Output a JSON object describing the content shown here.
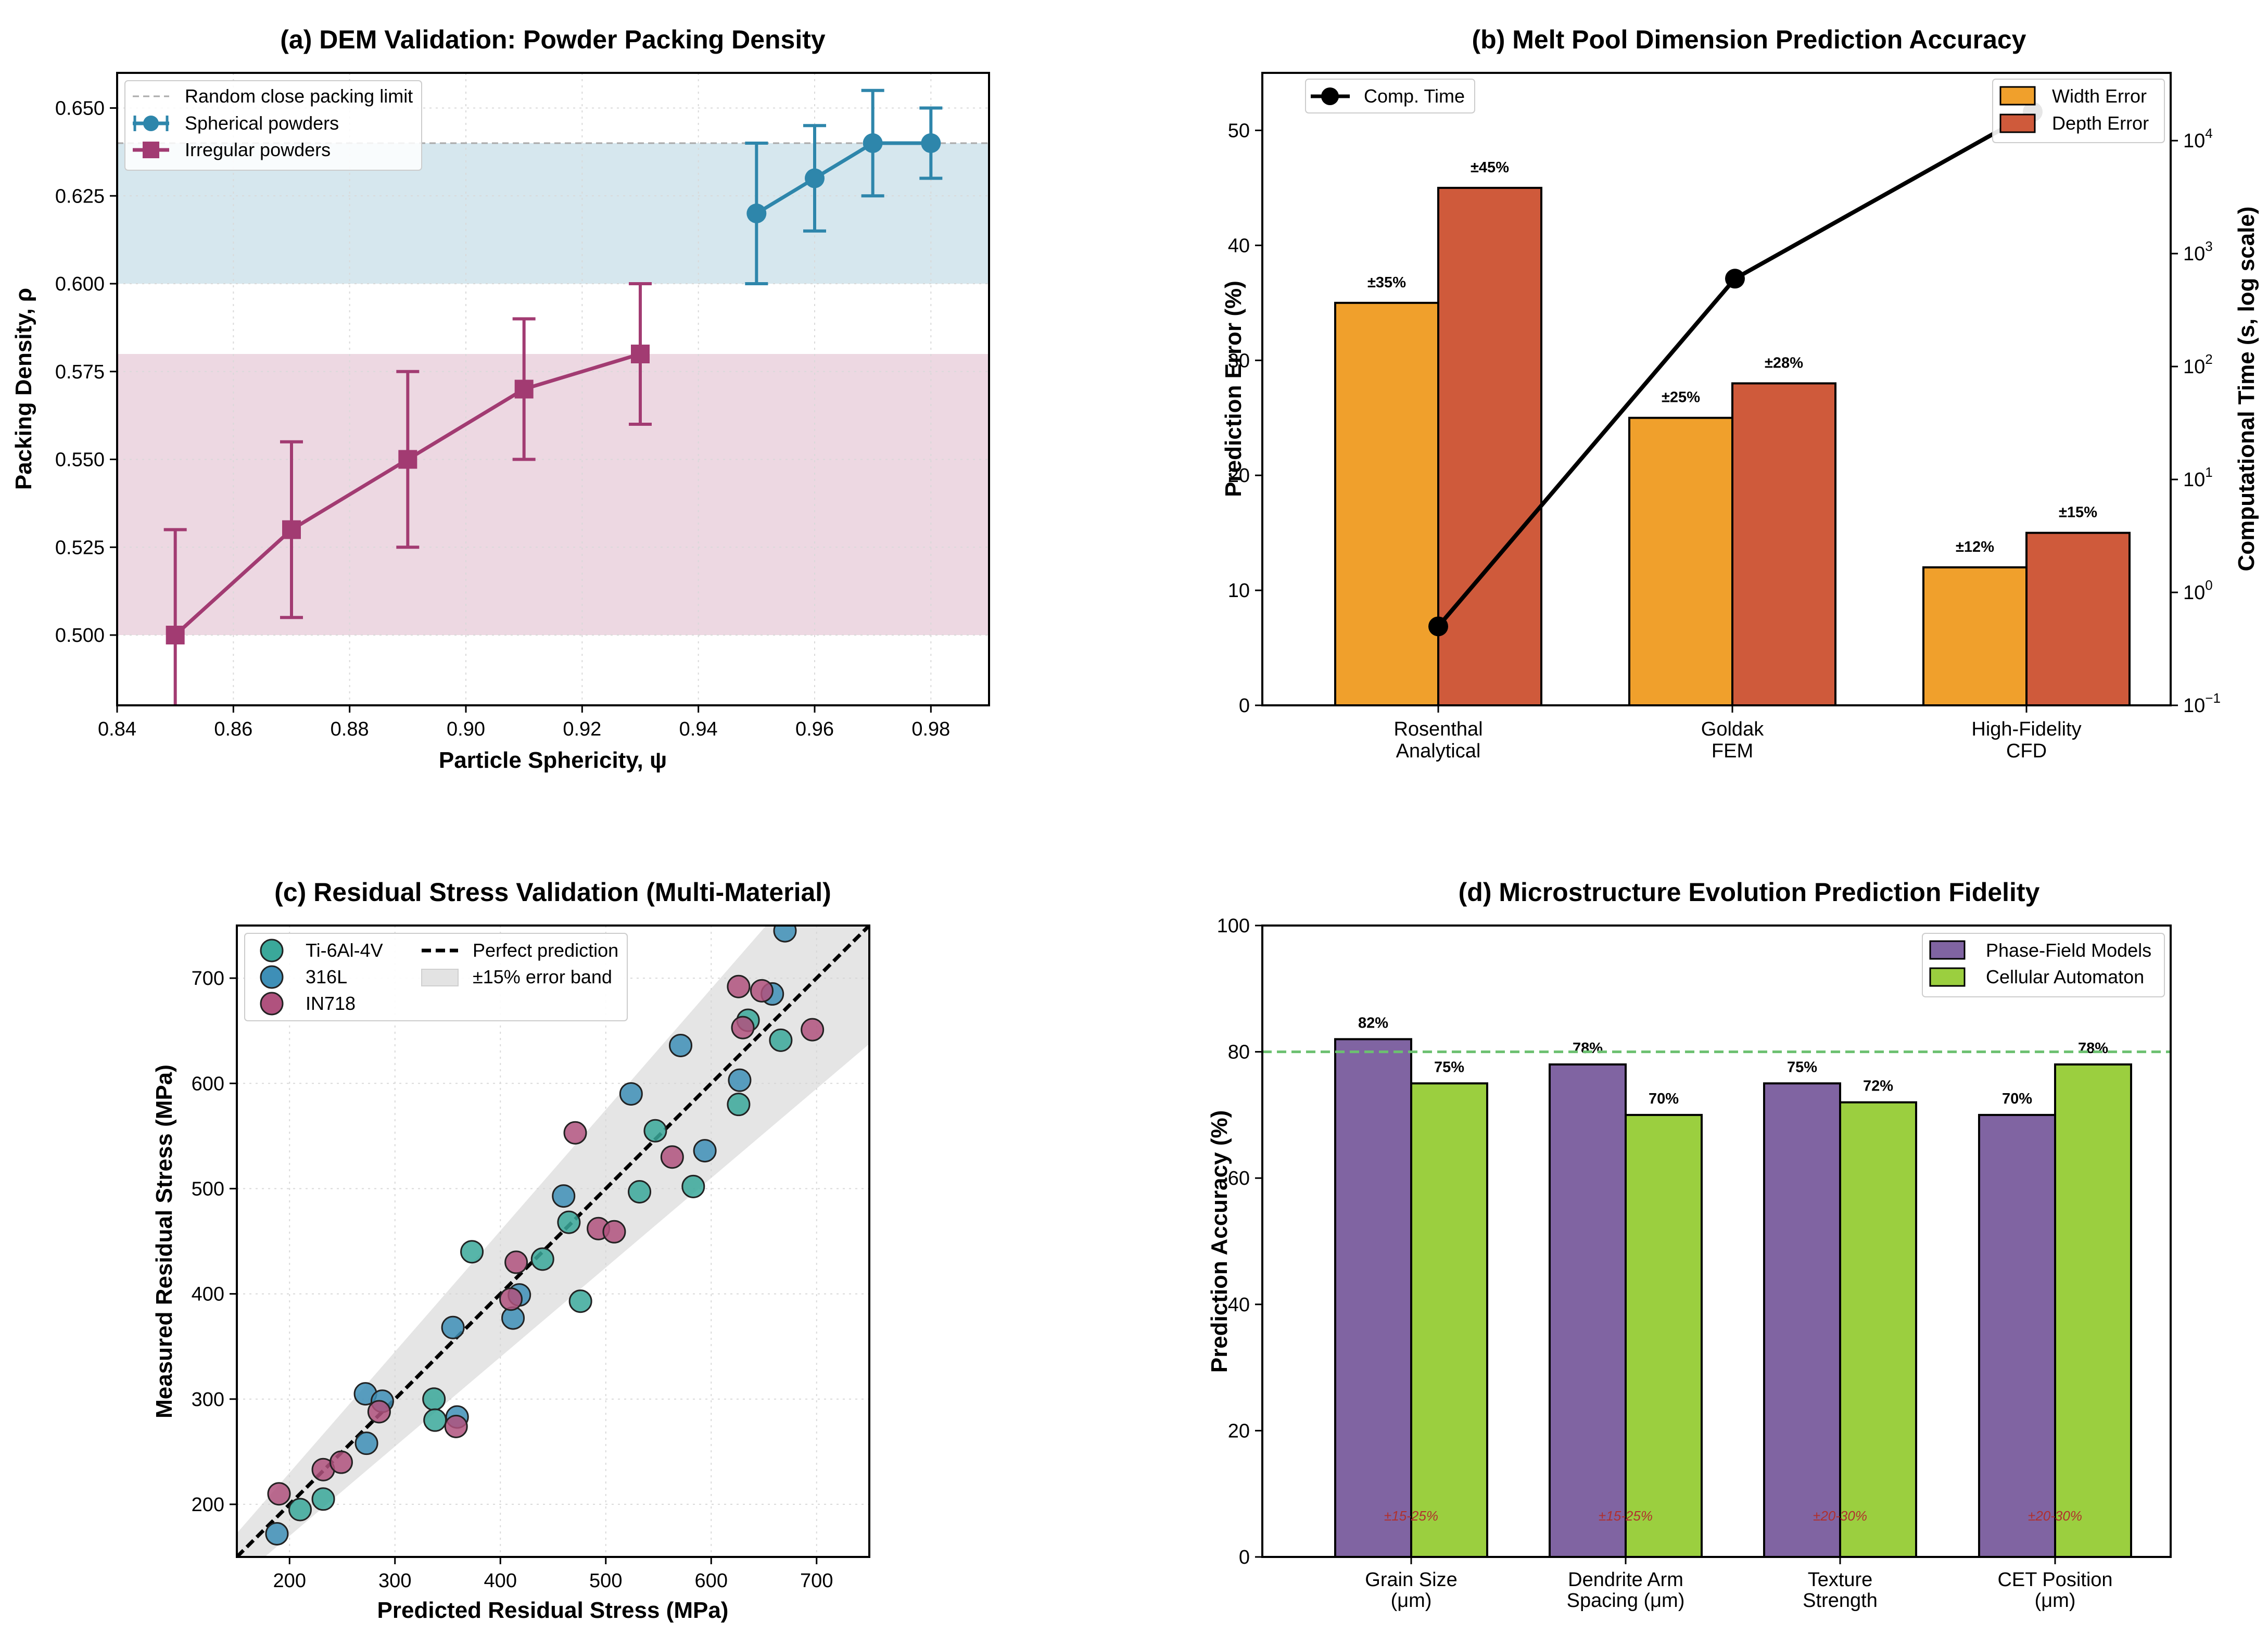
{
  "chart_data": [
    {
      "id": "a",
      "type": "line",
      "title": "(a) DEM Validation: Powder Packing Density",
      "xlabel": "Particle Sphericity, ψ",
      "ylabel": "Packing Density, ρ",
      "xlim": [
        0.84,
        0.99
      ],
      "ylim": [
        0.48,
        0.66
      ],
      "xticks": [
        "0.84",
        "0.86",
        "0.88",
        "0.90",
        "0.92",
        "0.94",
        "0.96",
        "0.98"
      ],
      "yticks": [
        "0.500",
        "0.525",
        "0.550",
        "0.575",
        "0.600",
        "0.625",
        "0.650"
      ],
      "reference_line": {
        "label": "Random close packing limit",
        "y": 0.64
      },
      "bands": [
        {
          "name": "spherical-band",
          "y": [
            0.6,
            0.64
          ],
          "color": "#add0dd"
        },
        {
          "name": "irregular-band",
          "y": [
            0.5,
            0.58
          ],
          "color": "#dcb2c6"
        }
      ],
      "series": [
        {
          "name": "Spherical powders",
          "color": "#2e86ab",
          "marker": "circle",
          "x": [
            0.95,
            0.96,
            0.97,
            0.98
          ],
          "y": [
            0.62,
            0.63,
            0.64,
            0.64
          ],
          "err": [
            0.02,
            0.015,
            0.015,
            0.01
          ]
        },
        {
          "name": "Irregular powders",
          "color": "#a23b72",
          "marker": "square",
          "x": [
            0.85,
            0.87,
            0.89,
            0.91,
            0.93
          ],
          "y": [
            0.5,
            0.53,
            0.55,
            0.57,
            0.58
          ],
          "err": [
            0.03,
            0.025,
            0.025,
            0.02,
            0.02
          ]
        }
      ]
    },
    {
      "id": "b",
      "type": "bar",
      "title": "(b) Melt Pool Dimension Prediction Accuracy",
      "ylabel": "Prediction Error (%)",
      "y2label": "Computational Time (s, log scale)",
      "ylim": [
        0,
        55
      ],
      "yticks": [
        "0",
        "10",
        "20",
        "30",
        "40",
        "50"
      ],
      "categories": [
        [
          "Rosenthal",
          "Analytical"
        ],
        [
          "Goldak",
          "FEM"
        ],
        [
          "High-Fidelity",
          "CFD"
        ]
      ],
      "series": [
        {
          "name": "Width Error",
          "color": "#f0a02c",
          "values": [
            35,
            25,
            12
          ],
          "labels": [
            "±35%",
            "±25%",
            "±12%"
          ]
        },
        {
          "name": "Depth Error",
          "color": "#cf5a3b",
          "values": [
            45,
            28,
            15
          ],
          "labels": [
            "±45%",
            "±28%",
            "±15%"
          ]
        }
      ],
      "line_series": {
        "name": "Comp. Time",
        "color": "#000000",
        "values": [
          0.5,
          600,
          18000
        ]
      },
      "y2_log_range": [
        -1,
        4.6
      ],
      "y2_ticks": [
        {
          "base": "10",
          "exp": "−1"
        },
        {
          "base": "10",
          "exp": "0"
        },
        {
          "base": "10",
          "exp": "1"
        },
        {
          "base": "10",
          "exp": "2"
        },
        {
          "base": "10",
          "exp": "3"
        },
        {
          "base": "10",
          "exp": "4"
        }
      ]
    },
    {
      "id": "c",
      "type": "scatter",
      "title": "(c) Residual Stress Validation (Multi-Material)",
      "xlabel": "Predicted Residual Stress (MPa)",
      "ylabel": "Measured Residual Stress (MPa)",
      "xlim": [
        150,
        750
      ],
      "ylim": [
        150,
        750
      ],
      "xticks": [
        "200",
        "300",
        "400",
        "500",
        "600",
        "700"
      ],
      "yticks": [
        "200",
        "300",
        "400",
        "500",
        "600",
        "700"
      ],
      "reference_line": {
        "label": "Perfect prediction"
      },
      "band": {
        "label": "±15% error band",
        "fraction": 0.15
      },
      "series": [
        {
          "name": "Ti-6Al-4V",
          "color": "#3aa89a",
          "points": [
            [
              210,
              195
            ],
            [
              232,
              205
            ],
            [
              337,
              300
            ],
            [
              338,
              280
            ],
            [
              373,
              440
            ],
            [
              440,
              433
            ],
            [
              465,
              468
            ],
            [
              476,
              393
            ],
            [
              532,
              497
            ],
            [
              547,
              555
            ],
            [
              583,
              502
            ],
            [
              626,
              580
            ],
            [
              635,
              660
            ],
            [
              666,
              641
            ]
          ]
        },
        {
          "name": "316L",
          "color": "#3e8fb7",
          "points": [
            [
              188,
              172
            ],
            [
              272,
              305
            ],
            [
              273,
              258
            ],
            [
              288,
              298
            ],
            [
              355,
              368
            ],
            [
              359,
              283
            ],
            [
              412,
              377
            ],
            [
              418,
              399
            ],
            [
              460,
              493
            ],
            [
              524,
              590
            ],
            [
              571,
              636
            ],
            [
              594,
              536
            ],
            [
              627,
              603
            ],
            [
              658,
              685
            ],
            [
              670,
              745
            ]
          ]
        },
        {
          "name": "IN718",
          "color": "#b0527e",
          "points": [
            [
              190,
              210
            ],
            [
              232,
              233
            ],
            [
              249,
              240
            ],
            [
              285,
              288
            ],
            [
              358,
              274
            ],
            [
              410,
              395
            ],
            [
              415,
              430
            ],
            [
              471,
              553
            ],
            [
              493,
              462
            ],
            [
              508,
              459
            ],
            [
              563,
              530
            ],
            [
              626,
              692
            ],
            [
              630,
              653
            ],
            [
              648,
              688
            ],
            [
              696,
              651
            ]
          ]
        }
      ]
    },
    {
      "id": "d",
      "type": "bar",
      "title": "(d) Microstructure Evolution Prediction Fidelity",
      "ylabel": "Prediction Accuracy (%)",
      "ylim": [
        0,
        100
      ],
      "yticks": [
        "0",
        "20",
        "40",
        "60",
        "80",
        "100"
      ],
      "reference_line": {
        "y": 80,
        "color": "#6cc070"
      },
      "categories": [
        [
          "Grain Size",
          "(μm)"
        ],
        [
          "Dendrite Arm",
          "Spacing (μm)"
        ],
        [
          "Texture",
          "Strength"
        ],
        [
          "CET Position",
          "(μm)"
        ]
      ],
      "series": [
        {
          "name": "Phase-Field Models",
          "color": "#8064a2",
          "values": [
            82,
            78,
            75,
            70
          ],
          "labels": [
            "82%",
            "78%",
            "75%",
            "70%"
          ]
        },
        {
          "name": "Cellular Automaton",
          "color": "#9bcf3f",
          "values": [
            75,
            70,
            72,
            78
          ],
          "labels": [
            "75%",
            "70%",
            "72%",
            "78%"
          ]
        }
      ],
      "uncertainty": [
        "±15-25%",
        "±15-25%",
        "±20-30%",
        "±20-30%"
      ]
    }
  ]
}
